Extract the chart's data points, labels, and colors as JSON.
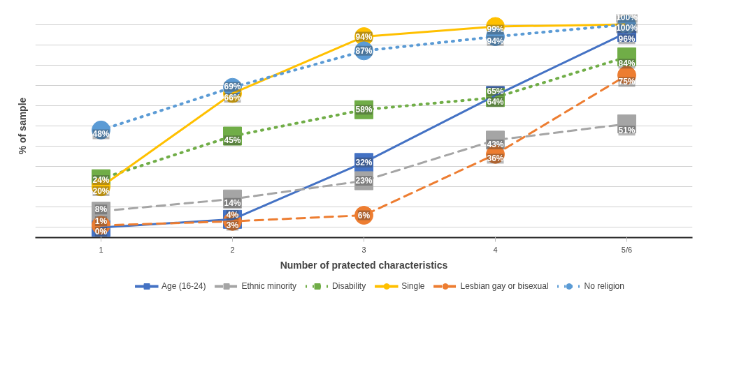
{
  "chart_data": {
    "type": "line",
    "xlabel": "Number of pratected characteristics",
    "ylabel": "% of sample",
    "categories": [
      "1",
      "2",
      "3",
      "4",
      "5/6"
    ],
    "tick_labels": "x",
    "grid": "y",
    "legend": "bottom",
    "series": [
      {
        "name": "Age (16-24)",
        "color": "#4472c4",
        "values": [
          0,
          4,
          32,
          65,
          96
        ],
        "value_labels": [
          "0%",
          "4%",
          "32%",
          "65%",
          "96%"
        ],
        "marker": "square",
        "line_style": "solid"
      },
      {
        "name": "Ethnic minority",
        "color": "#a5a5a5",
        "values": [
          8,
          14,
          23,
          43,
          51
        ],
        "value_labels": [
          "8%",
          "14%",
          "23%",
          "43%",
          "51%"
        ],
        "marker": "square",
        "line_style": "dashed"
      },
      {
        "name": "Disability",
        "color": "#70ad47",
        "values": [
          24,
          45,
          58,
          64,
          84
        ],
        "value_labels": [
          "24%",
          "45%",
          "58%",
          "64%",
          "84%"
        ],
        "marker": "square",
        "line_style": "dotted"
      },
      {
        "name": "Single",
        "color": "#ffc000",
        "values": [
          20,
          66,
          94,
          99,
          100
        ],
        "value_labels": [
          "20%",
          "66%",
          "94%",
          "99%",
          "100%"
        ],
        "marker": "circle",
        "line_style": "solid"
      },
      {
        "name": "Lesbian gay or bisexual",
        "color": "#ed7d31",
        "values": [
          1,
          3,
          6,
          36,
          75
        ],
        "value_labels": [
          "1%",
          "3%",
          "6%",
          "36%",
          "75%"
        ],
        "marker": "circle",
        "line_style": "dashed"
      },
      {
        "name": "No religion",
        "color": "#5b9bd5",
        "values": [
          48,
          69,
          87,
          94,
          100
        ],
        "value_labels": [
          "48%",
          "69%",
          "87%",
          "94%",
          "100%"
        ],
        "marker": "circle",
        "line_style": "dotted"
      }
    ]
  }
}
